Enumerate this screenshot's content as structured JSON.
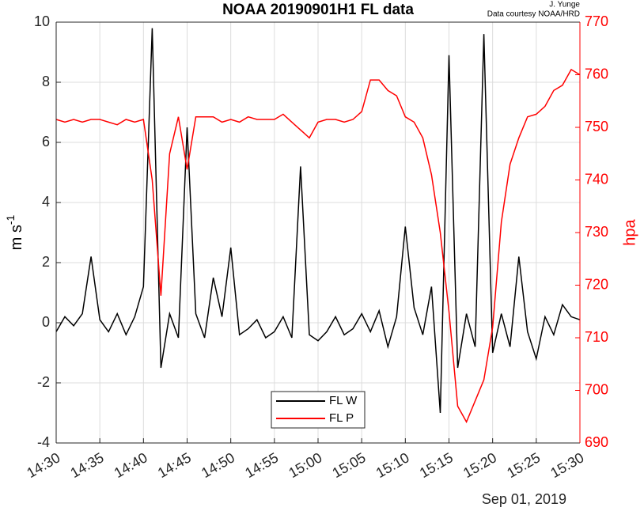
{
  "chart_data": {
    "type": "line",
    "title": "NOAA 20190901H1 FL data",
    "credit": [
      "J. Yunge",
      "Data courtesy NOAA/HRD"
    ],
    "ylabel": "m s",
    "ylabel_sup": "-1",
    "y2label": "hpa",
    "xlabel": "Sep 01, 2019",
    "x": [
      "14:30",
      "14:31",
      "14:32",
      "14:33",
      "14:34",
      "14:35",
      "14:36",
      "14:37",
      "14:38",
      "14:39",
      "14:40",
      "14:41",
      "14:42",
      "14:43",
      "14:44",
      "14:45",
      "14:46",
      "14:47",
      "14:48",
      "14:49",
      "14:50",
      "14:51",
      "14:52",
      "14:53",
      "14:54",
      "14:55",
      "14:56",
      "14:57",
      "14:58",
      "14:59",
      "15:00",
      "15:01",
      "15:02",
      "15:03",
      "15:04",
      "15:05",
      "15:06",
      "15:07",
      "15:08",
      "15:09",
      "15:10",
      "15:11",
      "15:12",
      "15:13",
      "15:14",
      "15:15",
      "15:16",
      "15:17",
      "15:18",
      "15:19",
      "15:20",
      "15:21",
      "15:22",
      "15:23",
      "15:24",
      "15:25",
      "15:26",
      "15:27",
      "15:28",
      "15:29",
      "15:30"
    ],
    "series": [
      {
        "name": "FL W",
        "color": "#000000",
        "axis": "y",
        "values": [
          -0.3,
          0.2,
          -0.1,
          0.3,
          2.2,
          0.1,
          -0.3,
          0.3,
          -0.4,
          0.2,
          1.2,
          9.8,
          -1.5,
          0.3,
          -0.5,
          6.5,
          0.3,
          -0.5,
          1.5,
          0.2,
          2.5,
          -0.4,
          -0.2,
          0.1,
          -0.5,
          -0.3,
          0.2,
          -0.5,
          5.2,
          -0.4,
          -0.6,
          -0.3,
          0.2,
          -0.4,
          -0.2,
          0.3,
          -0.3,
          0.4,
          -0.8,
          0.2,
          3.2,
          0.5,
          -0.4,
          1.2,
          -3.0,
          8.9,
          -1.5,
          0.3,
          -0.8,
          9.6,
          -1.0,
          0.3,
          -0.8,
          2.2,
          -0.3,
          -1.2,
          0.2,
          -0.4,
          0.6,
          0.2,
          0.1
        ]
      },
      {
        "name": "FL P",
        "color": "#ff0000",
        "axis": "y2",
        "values": [
          751.5,
          751,
          751.5,
          751,
          751.5,
          751.5,
          751,
          750.5,
          751.5,
          751,
          751.5,
          740,
          718,
          745,
          752,
          742,
          752,
          752,
          752,
          751,
          751.5,
          751,
          752,
          751.5,
          751.5,
          751.5,
          752.5,
          751,
          749.5,
          748,
          751,
          751.5,
          751.5,
          751,
          751.5,
          753,
          759,
          759,
          757,
          756,
          752,
          751,
          748,
          741,
          730,
          715,
          697,
          694,
          698,
          702,
          712,
          732,
          743,
          748,
          752,
          752.5,
          754,
          757,
          758,
          761,
          760
        ]
      }
    ],
    "xlim": [
      "14:30",
      "15:30"
    ],
    "xticks": [
      "14:30",
      "14:35",
      "14:40",
      "14:45",
      "14:50",
      "14:55",
      "15:00",
      "15:05",
      "15:10",
      "15:15",
      "15:20",
      "15:25",
      "15:30"
    ],
    "ylim": [
      -4,
      10
    ],
    "yticks": [
      -4,
      -2,
      0,
      2,
      4,
      6,
      8,
      10
    ],
    "y2lim": [
      690,
      770
    ],
    "y2ticks": [
      690,
      700,
      710,
      720,
      730,
      740,
      750,
      760,
      770
    ],
    "grid": true,
    "legend": "bottom"
  }
}
